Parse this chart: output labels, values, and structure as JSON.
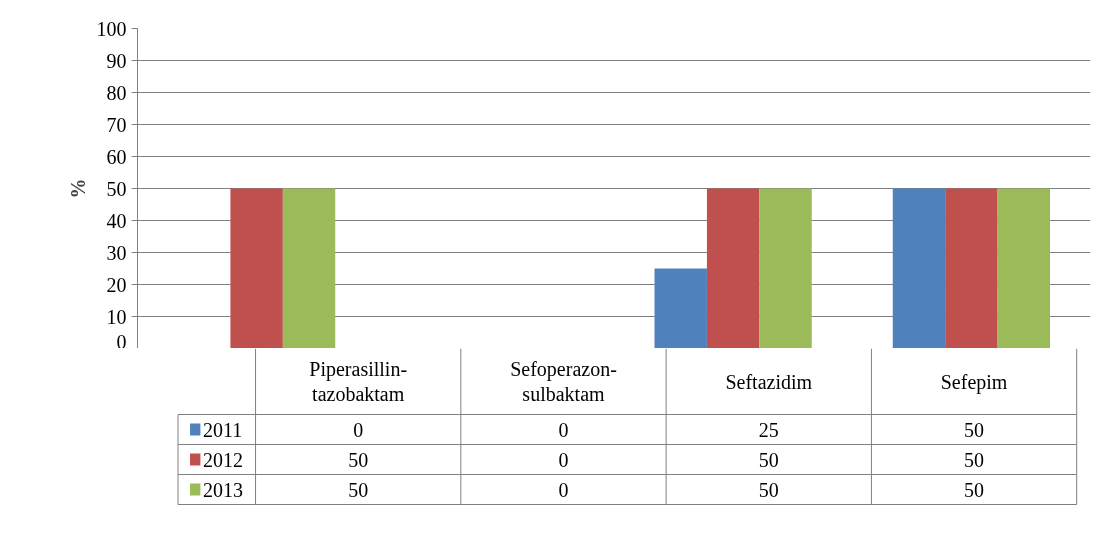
{
  "chart_data": {
    "type": "bar",
    "ylabel": "%",
    "categories": [
      "Piperasillin-tazobaktam",
      "Sefoperazon-sulbaktam",
      "Seftazidim",
      "Sefepim"
    ],
    "series": [
      {
        "name": "2011",
        "color": "#4f81bd",
        "values": [
          0,
          0,
          25,
          50
        ]
      },
      {
        "name": "2012",
        "color": "#c0504d",
        "values": [
          50,
          0,
          50,
          50
        ]
      },
      {
        "name": "2013",
        "color": "#9bbb59",
        "values": [
          50,
          0,
          50,
          50
        ]
      }
    ],
    "ylim": [
      0,
      100
    ],
    "yticks": [
      0,
      10,
      20,
      30,
      40,
      50,
      60,
      70,
      80,
      90,
      100
    ],
    "grid": "y",
    "legend": "bottom",
    "data_labels": true,
    "tick_labels": "y"
  }
}
